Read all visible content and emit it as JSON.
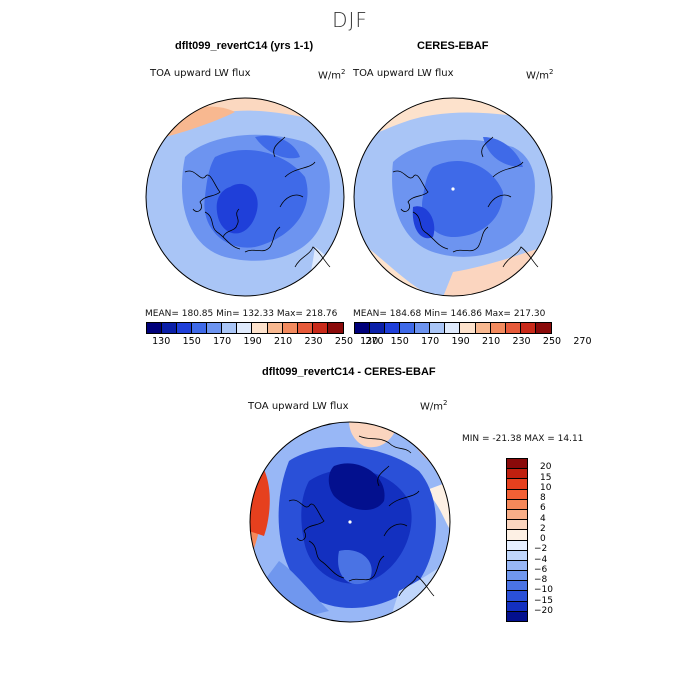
{
  "page_title": "DJF",
  "panels": [
    {
      "title": "dflt099_revertC14 (yrs 1-1)",
      "field_label": "TOA upward LW flux",
      "units": "W/m",
      "units_exp": "2",
      "stats": "MEAN= 180.85   Min= 132.33   Max= 218.76"
    },
    {
      "title": "CERES-EBAF",
      "field_label": "TOA upward LW flux",
      "units": "W/m",
      "units_exp": "2",
      "stats": "MEAN= 184.68   Min= 146.86   Max= 217.30"
    }
  ],
  "abs_colorbar": {
    "colors": [
      "#00007a",
      "#0a1fa8",
      "#1f3fd9",
      "#3f6ae8",
      "#6d94f0",
      "#a9c5f6",
      "#dfeafc",
      "#fde2cc",
      "#f8b890",
      "#f28a5e",
      "#e65a3a",
      "#c92a1a",
      "#8a0a0a"
    ],
    "tick_labels": [
      "130",
      "150",
      "170",
      "190",
      "210",
      "230",
      "250",
      "270"
    ]
  },
  "diff_panel": {
    "title": "dflt099_revertC14 - CERES-EBAF",
    "field_label": "TOA upward LW flux",
    "units": "W/m",
    "units_exp": "2",
    "stats": "MIN = -21.38  MAX =  14.11"
  },
  "diff_colorbar": {
    "colors": [
      "#8a0a0a",
      "#c0200f",
      "#e6401e",
      "#f26035",
      "#f5885a",
      "#f8ae88",
      "#fbd5bf",
      "#fdf0e4",
      "#e6efff",
      "#c0d6fb",
      "#98b7f6",
      "#7097ee",
      "#4a73e4",
      "#2a50d8",
      "#1330c0",
      "#03108e"
    ],
    "tick_labels": [
      "20",
      "15",
      "10",
      "8",
      "6",
      "4",
      "2",
      "0",
      "−2",
      "−4",
      "−6",
      "−8",
      "−10",
      "−15",
      "−20"
    ]
  }
}
